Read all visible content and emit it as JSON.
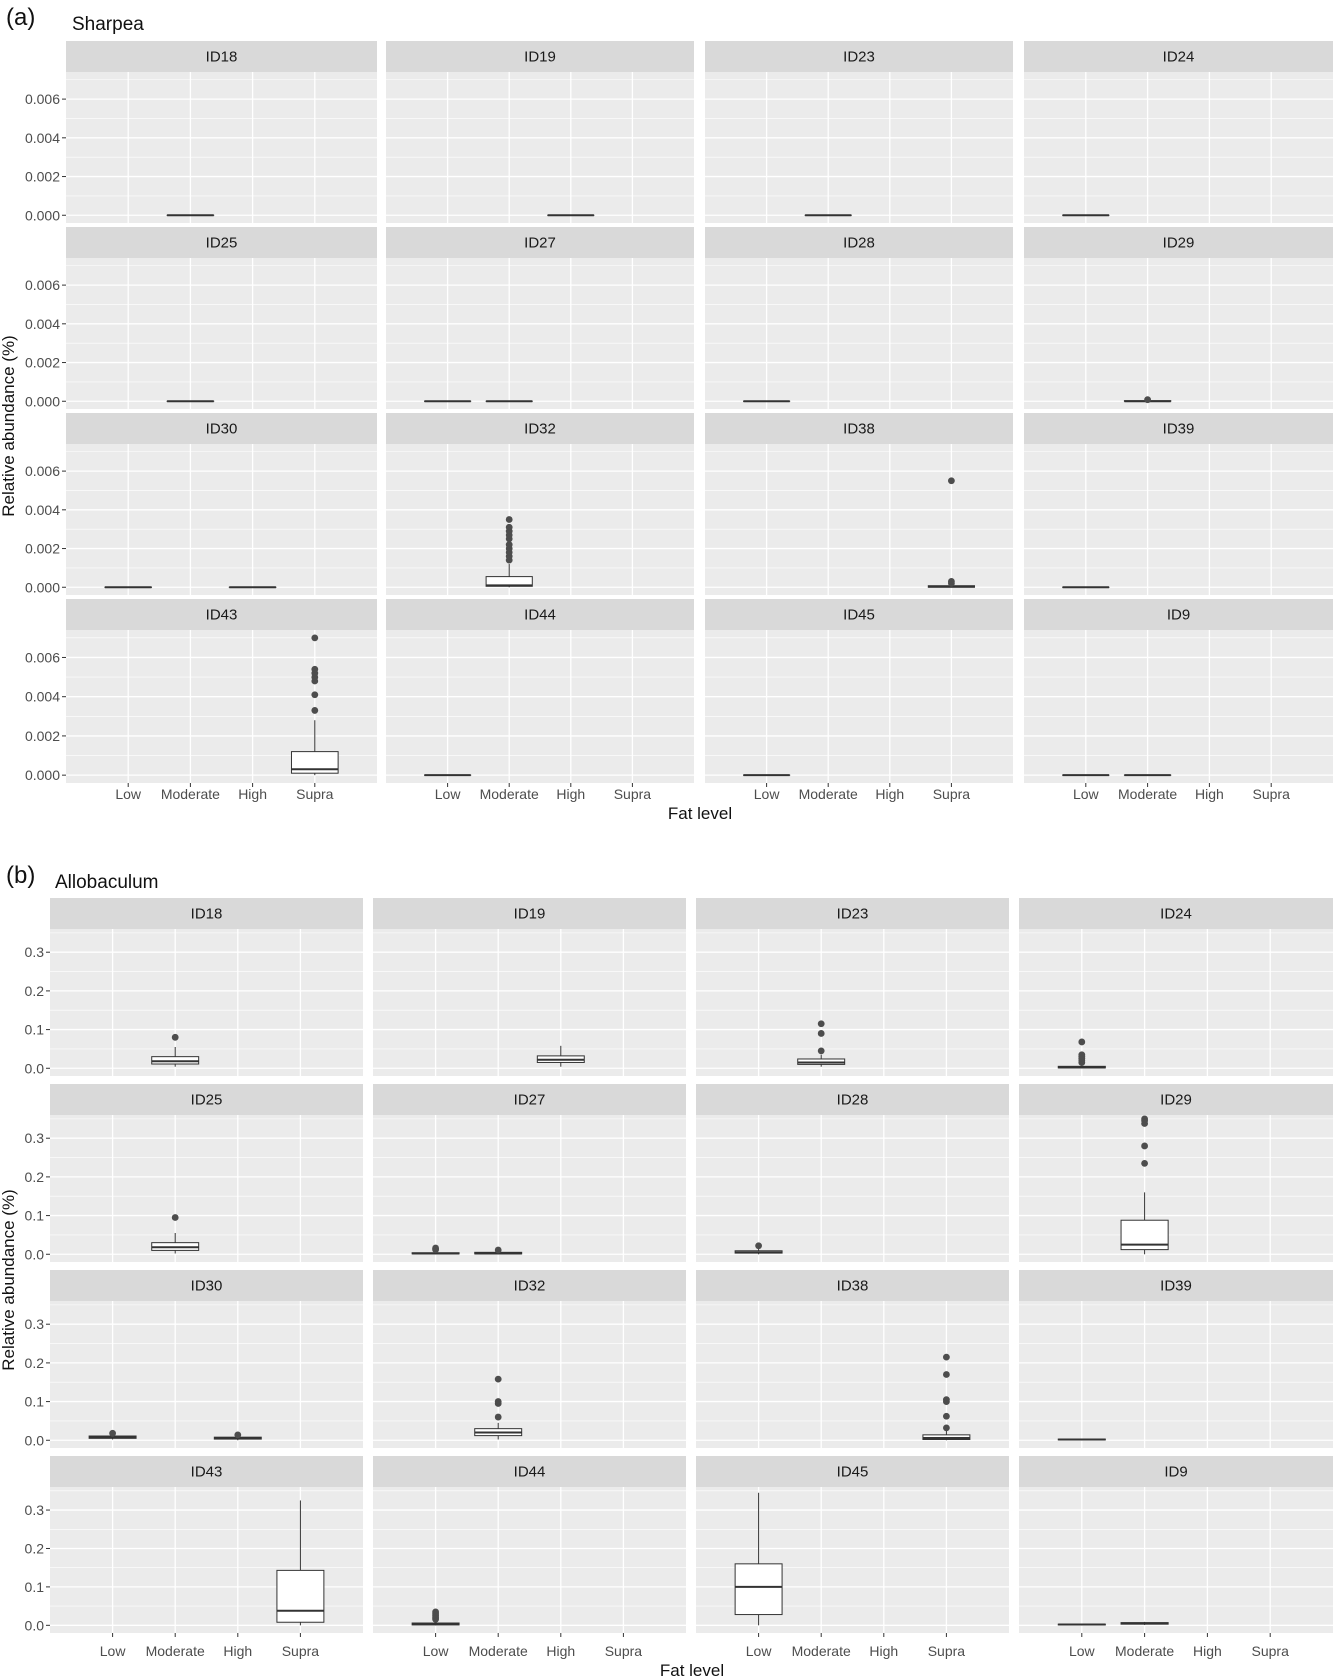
{
  "chart_data": [
    {
      "type": "boxplot",
      "panel_label": "(a)",
      "title": "Sharpea",
      "xlabel": "Fat level",
      "ylabel": "Relative abundance (%)",
      "categories": [
        "Low",
        "Moderate",
        "High",
        "Supra"
      ],
      "ylim": [
        -0.0004,
        0.0074
      ],
      "yticks": [
        0.0,
        0.002,
        0.004,
        0.006
      ],
      "ytick_labels": [
        "0.000",
        "0.002",
        "0.004",
        "0.006"
      ],
      "facets": [
        {
          "id": "ID18",
          "boxes": [
            {
              "level": "Moderate",
              "q1": 0,
              "median": 0,
              "q3": 0,
              "whisker_low": 0,
              "whisker_high": 0,
              "outliers": []
            }
          ]
        },
        {
          "id": "ID19",
          "boxes": [
            {
              "level": "High",
              "q1": 0,
              "median": 0,
              "q3": 0,
              "whisker_low": 0,
              "whisker_high": 0,
              "outliers": []
            }
          ]
        },
        {
          "id": "ID23",
          "boxes": [
            {
              "level": "Moderate",
              "q1": 0,
              "median": 0,
              "q3": 0,
              "whisker_low": 0,
              "whisker_high": 0,
              "outliers": []
            }
          ]
        },
        {
          "id": "ID24",
          "boxes": [
            {
              "level": "Low",
              "q1": 0,
              "median": 0,
              "q3": 0,
              "whisker_low": 0,
              "whisker_high": 0,
              "outliers": []
            }
          ]
        },
        {
          "id": "ID25",
          "boxes": [
            {
              "level": "Moderate",
              "q1": 0,
              "median": 0,
              "q3": 0,
              "whisker_low": 0,
              "whisker_high": 0,
              "outliers": []
            }
          ]
        },
        {
          "id": "ID27",
          "boxes": [
            {
              "level": "Low",
              "q1": 0,
              "median": 0,
              "q3": 0,
              "whisker_low": 0,
              "whisker_high": 0,
              "outliers": []
            },
            {
              "level": "Moderate",
              "q1": 0,
              "median": 0,
              "q3": 0,
              "whisker_low": 0,
              "whisker_high": 0,
              "outliers": []
            }
          ]
        },
        {
          "id": "ID28",
          "boxes": [
            {
              "level": "Low",
              "q1": 0,
              "median": 0,
              "q3": 0,
              "whisker_low": 0,
              "whisker_high": 0,
              "outliers": []
            }
          ]
        },
        {
          "id": "ID29",
          "boxes": [
            {
              "level": "Moderate",
              "q1": 0,
              "median": 0,
              "q3": 3e-05,
              "whisker_low": 0,
              "whisker_high": 5e-05,
              "outliers": [
                8e-05
              ]
            }
          ]
        },
        {
          "id": "ID30",
          "boxes": [
            {
              "level": "Low",
              "q1": 0,
              "median": 0,
              "q3": 0,
              "whisker_low": 0,
              "whisker_high": 0,
              "outliers": []
            },
            {
              "level": "High",
              "q1": 0,
              "median": 0,
              "q3": 0,
              "whisker_low": 0,
              "whisker_high": 0,
              "outliers": []
            }
          ]
        },
        {
          "id": "ID32",
          "boxes": [
            {
              "level": "Moderate",
              "q1": 5e-05,
              "median": 0.0001,
              "q3": 0.00055,
              "whisker_low": 0,
              "whisker_high": 0.0012,
              "outliers": [
                0.0014,
                0.0016,
                0.0018,
                0.002,
                0.0022,
                0.0025,
                0.0027,
                0.0029,
                0.0031,
                0.0035
              ]
            }
          ]
        },
        {
          "id": "ID38",
          "boxes": [
            {
              "level": "Supra",
              "q1": 0,
              "median": 3e-05,
              "q3": 8e-05,
              "whisker_low": 0,
              "whisker_high": 0.00015,
              "outliers": [
                0.0002,
                0.0003,
                0.0055
              ]
            }
          ]
        },
        {
          "id": "ID39",
          "boxes": [
            {
              "level": "Low",
              "q1": 0,
              "median": 0,
              "q3": 0,
              "whisker_low": 0,
              "whisker_high": 0,
              "outliers": []
            }
          ]
        },
        {
          "id": "ID43",
          "boxes": [
            {
              "level": "Supra",
              "q1": 0.0001,
              "median": 0.0003,
              "q3": 0.0012,
              "whisker_low": 0,
              "whisker_high": 0.0028,
              "outliers": [
                0.0033,
                0.0041,
                0.0048,
                0.005,
                0.0052,
                0.0054,
                0.007
              ]
            }
          ]
        },
        {
          "id": "ID44",
          "boxes": [
            {
              "level": "Low",
              "q1": 0,
              "median": 0,
              "q3": 0,
              "whisker_low": 0,
              "whisker_high": 0,
              "outliers": []
            }
          ]
        },
        {
          "id": "ID45",
          "boxes": [
            {
              "level": "Low",
              "q1": 0,
              "median": 0,
              "q3": 0,
              "whisker_low": 0,
              "whisker_high": 0,
              "outliers": []
            }
          ]
        },
        {
          "id": "ID9",
          "boxes": [
            {
              "level": "Low",
              "q1": 0,
              "median": 0,
              "q3": 0,
              "whisker_low": 0,
              "whisker_high": 0,
              "outliers": []
            },
            {
              "level": "Moderate",
              "q1": 0,
              "median": 0,
              "q3": 0,
              "whisker_low": 0,
              "whisker_high": 0,
              "outliers": []
            }
          ]
        }
      ]
    },
    {
      "type": "boxplot",
      "panel_label": "(b)",
      "title": "Allobaculum",
      "xlabel": "Fat level",
      "ylabel": "Relative abundance (%)",
      "categories": [
        "Low",
        "Moderate",
        "High",
        "Supra"
      ],
      "ylim": [
        -0.02,
        0.36
      ],
      "yticks": [
        0.0,
        0.1,
        0.2,
        0.3
      ],
      "ytick_labels": [
        "0.0",
        "0.1",
        "0.2",
        "0.3"
      ],
      "facets": [
        {
          "id": "ID18",
          "boxes": [
            {
              "level": "Moderate",
              "q1": 0.011,
              "median": 0.018,
              "q3": 0.03,
              "whisker_low": 0.004,
              "whisker_high": 0.055,
              "outliers": [
                0.08
              ]
            }
          ]
        },
        {
          "id": "ID19",
          "boxes": [
            {
              "level": "High",
              "q1": 0.015,
              "median": 0.022,
              "q3": 0.032,
              "whisker_low": 0.004,
              "whisker_high": 0.058,
              "outliers": []
            }
          ]
        },
        {
          "id": "ID23",
          "boxes": [
            {
              "level": "Moderate",
              "q1": 0.01,
              "median": 0.015,
              "q3": 0.024,
              "whisker_low": 0.004,
              "whisker_high": 0.035,
              "outliers": [
                0.045,
                0.09,
                0.115
              ]
            }
          ]
        },
        {
          "id": "ID24",
          "boxes": [
            {
              "level": "Low",
              "q1": 0.001,
              "median": 0.002,
              "q3": 0.005,
              "whisker_low": 0,
              "whisker_high": 0.01,
              "outliers": [
                0.015,
                0.02,
                0.025,
                0.03,
                0.035,
                0.068
              ]
            }
          ]
        },
        {
          "id": "ID25",
          "boxes": [
            {
              "level": "Moderate",
              "q1": 0.01,
              "median": 0.018,
              "q3": 0.03,
              "whisker_low": 0.002,
              "whisker_high": 0.055,
              "outliers": [
                0.095
              ]
            }
          ]
        },
        {
          "id": "ID27",
          "boxes": [
            {
              "level": "Low",
              "q1": 0.001,
              "median": 0.002,
              "q3": 0.004,
              "whisker_low": 0,
              "whisker_high": 0.008,
              "outliers": [
                0.012,
                0.016
              ]
            },
            {
              "level": "Moderate",
              "q1": 0.001,
              "median": 0.002,
              "q3": 0.005,
              "whisker_low": 0,
              "whisker_high": 0.008,
              "outliers": [
                0.011
              ]
            }
          ]
        },
        {
          "id": "ID28",
          "boxes": [
            {
              "level": "Low",
              "q1": 0.003,
              "median": 0.005,
              "q3": 0.009,
              "whisker_low": 0,
              "whisker_high": 0.015,
              "outliers": [
                0.022
              ]
            }
          ]
        },
        {
          "id": "ID29",
          "boxes": [
            {
              "level": "Moderate",
              "q1": 0.012,
              "median": 0.025,
              "q3": 0.088,
              "whisker_low": 0,
              "whisker_high": 0.16,
              "outliers": [
                0.235,
                0.28,
                0.338,
                0.345,
                0.35
              ]
            }
          ]
        },
        {
          "id": "ID30",
          "boxes": [
            {
              "level": "Low",
              "q1": 0.005,
              "median": 0.008,
              "q3": 0.011,
              "whisker_low": 0.002,
              "whisker_high": 0.015,
              "outliers": [
                0.018
              ]
            },
            {
              "level": "High",
              "q1": 0.003,
              "median": 0.005,
              "q3": 0.008,
              "whisker_low": 0,
              "whisker_high": 0.01,
              "outliers": [
                0.014
              ]
            }
          ]
        },
        {
          "id": "ID32",
          "boxes": [
            {
              "level": "Moderate",
              "q1": 0.012,
              "median": 0.02,
              "q3": 0.03,
              "whisker_low": 0.002,
              "whisker_high": 0.045,
              "outliers": [
                0.06,
                0.095,
                0.1,
                0.158
              ]
            }
          ]
        },
        {
          "id": "ID38",
          "boxes": [
            {
              "level": "Supra",
              "q1": 0.002,
              "median": 0.006,
              "q3": 0.014,
              "whisker_low": 0,
              "whisker_high": 0.025,
              "outliers": [
                0.032,
                0.062,
                0.1,
                0.105,
                0.17,
                0.215
              ]
            }
          ]
        },
        {
          "id": "ID39",
          "boxes": [
            {
              "level": "Low",
              "q1": 0.001,
              "median": 0.002,
              "q3": 0.003,
              "whisker_low": 0,
              "whisker_high": 0.004,
              "outliers": []
            }
          ]
        },
        {
          "id": "ID43",
          "boxes": [
            {
              "level": "Supra",
              "q1": 0.008,
              "median": 0.038,
              "q3": 0.143,
              "whisker_low": 0,
              "whisker_high": 0.325,
              "outliers": []
            }
          ]
        },
        {
          "id": "ID44",
          "boxes": [
            {
              "level": "Low",
              "q1": 0.001,
              "median": 0.003,
              "q3": 0.006,
              "whisker_low": 0,
              "whisker_high": 0.012,
              "outliers": [
                0.016,
                0.02,
                0.025,
                0.03,
                0.035
              ]
            }
          ]
        },
        {
          "id": "ID45",
          "boxes": [
            {
              "level": "Low",
              "q1": 0.028,
              "median": 0.1,
              "q3": 0.16,
              "whisker_low": 0,
              "whisker_high": 0.345,
              "outliers": []
            }
          ]
        },
        {
          "id": "ID9",
          "boxes": [
            {
              "level": "Low",
              "q1": 0.001,
              "median": 0.002,
              "q3": 0.003,
              "whisker_low": 0,
              "whisker_high": 0.004,
              "outliers": []
            },
            {
              "level": "Moderate",
              "q1": 0.003,
              "median": 0.005,
              "q3": 0.007,
              "whisker_low": 0.001,
              "whisker_high": 0.009,
              "outliers": []
            }
          ]
        }
      ]
    }
  ]
}
